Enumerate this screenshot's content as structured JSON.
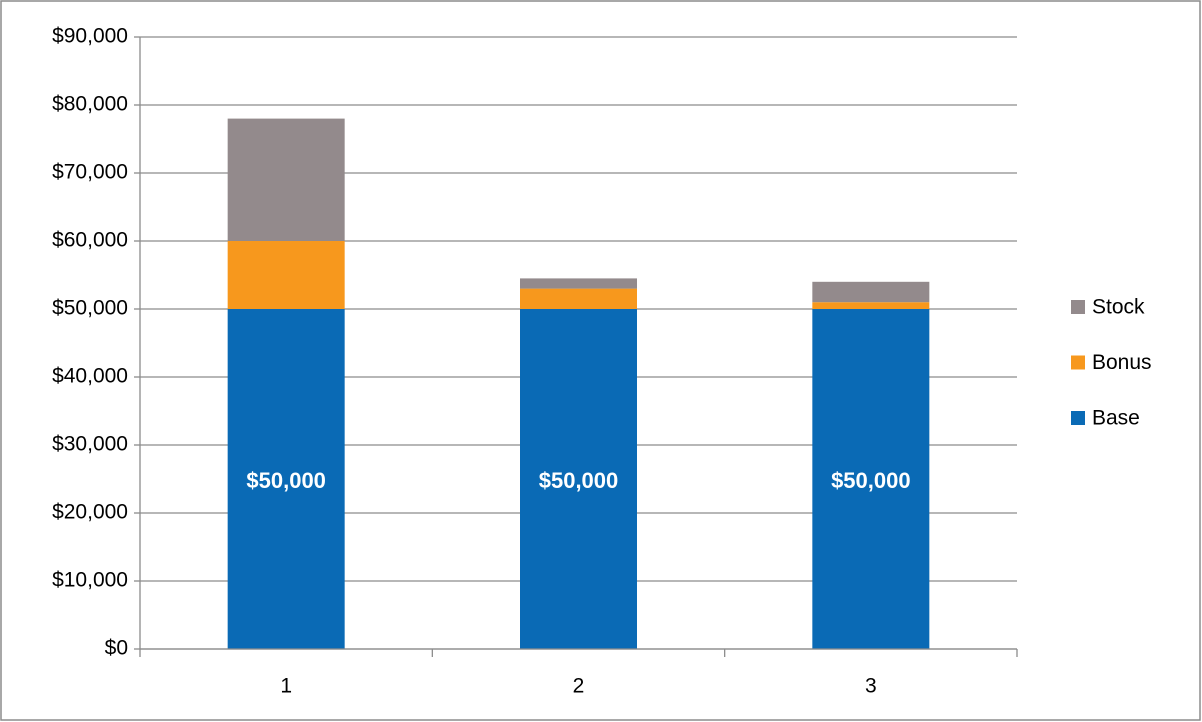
{
  "chart_data": {
    "type": "stacked_bar",
    "categories": [
      "1",
      "2",
      "3"
    ],
    "series": [
      {
        "name": "Base",
        "color": "#0a6ab5",
        "values": [
          50000,
          50000,
          50000
        ],
        "value_labels": [
          "$50,000",
          "$50,000",
          "$50,000"
        ]
      },
      {
        "name": "Bonus",
        "color": "#f7981d",
        "values": [
          10000,
          3000,
          1000
        ]
      },
      {
        "name": "Stock",
        "color": "#938a8c",
        "values": [
          18000,
          1500,
          3000
        ]
      }
    ],
    "ylim": [
      0,
      90000
    ],
    "yticks": [
      {
        "value": 0,
        "label": "$0"
      },
      {
        "value": 10000,
        "label": "$10,000"
      },
      {
        "value": 20000,
        "label": "$20,000"
      },
      {
        "value": 30000,
        "label": "$30,000"
      },
      {
        "value": 40000,
        "label": "$40,000"
      },
      {
        "value": 50000,
        "label": "$50,000"
      },
      {
        "value": 60000,
        "label": "$60,000"
      },
      {
        "value": 70000,
        "label": "$70,000"
      },
      {
        "value": 80000,
        "label": "$80,000"
      },
      {
        "value": 90000,
        "label": "$90,000"
      }
    ],
    "grid": true,
    "legend": "right"
  }
}
